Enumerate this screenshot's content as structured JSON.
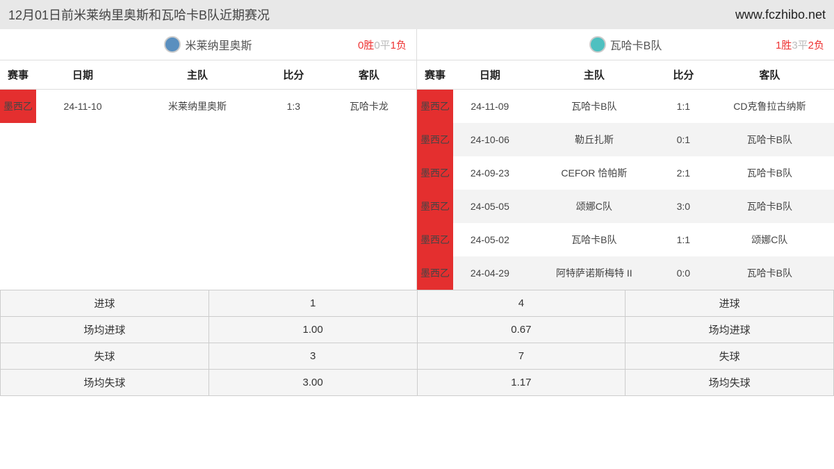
{
  "header": {
    "title": "12月01日前米莱纳里奥斯和瓦哈卡B队近期赛况",
    "url": "www.fczhibo.net"
  },
  "left": {
    "team": "米莱纳里奥斯",
    "record": {
      "win": "0胜",
      "draw": "0平",
      "lose": "1负"
    },
    "cols": {
      "league": "赛事",
      "date": "日期",
      "home": "主队",
      "score": "比分",
      "away": "客队"
    },
    "rows": [
      {
        "league": "墨西乙",
        "date": "24-11-10",
        "home": "米莱纳里奥斯",
        "score": "1:3",
        "away": "瓦哈卡龙"
      }
    ]
  },
  "right": {
    "team": "瓦哈卡B队",
    "record": {
      "win": "1胜",
      "draw": "3平",
      "lose": "2负"
    },
    "cols": {
      "league": "赛事",
      "date": "日期",
      "home": "主队",
      "score": "比分",
      "away": "客队"
    },
    "rows": [
      {
        "league": "墨西乙",
        "date": "24-11-09",
        "home": "瓦哈卡B队",
        "score": "1:1",
        "away": "CD克鲁拉古纳斯"
      },
      {
        "league": "墨西乙",
        "date": "24-10-06",
        "home": "勒丘扎斯",
        "score": "0:1",
        "away": "瓦哈卡B队"
      },
      {
        "league": "墨西乙",
        "date": "24-09-23",
        "home": "CEFOR 恰帕斯",
        "score": "2:1",
        "away": "瓦哈卡B队"
      },
      {
        "league": "墨西乙",
        "date": "24-05-05",
        "home": "颂娜C队",
        "score": "3:0",
        "away": "瓦哈卡B队"
      },
      {
        "league": "墨西乙",
        "date": "24-05-02",
        "home": "瓦哈卡B队",
        "score": "1:1",
        "away": "颂娜C队"
      },
      {
        "league": "墨西乙",
        "date": "24-04-29",
        "home": "阿特萨诺斯梅特 II",
        "score": "0:0",
        "away": "瓦哈卡B队"
      }
    ]
  },
  "summary": {
    "rows": [
      {
        "left_label": "进球",
        "left_val": "1",
        "right_val": "4",
        "right_label": "进球"
      },
      {
        "left_label": "场均进球",
        "left_val": "1.00",
        "right_val": "0.67",
        "right_label": "场均进球"
      },
      {
        "left_label": "失球",
        "left_val": "3",
        "right_val": "7",
        "right_label": "失球"
      },
      {
        "left_label": "场均失球",
        "left_val": "3.00",
        "right_val": "1.17",
        "right_label": "场均失球"
      }
    ]
  }
}
